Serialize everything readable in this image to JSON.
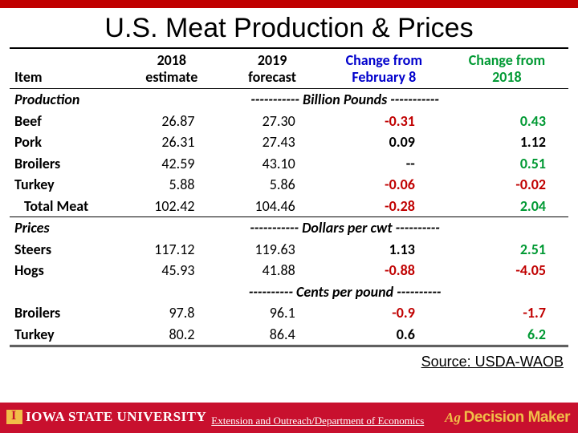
{
  "title": "U.S. Meat Production & Prices",
  "headers": {
    "item": "Item",
    "c1a": "2018",
    "c1b": "estimate",
    "c2a": "2019",
    "c2b": "forecast",
    "c3a": "Change from",
    "c3b": "February 8",
    "c4a": "Change from",
    "c4b": "2018"
  },
  "sections": {
    "production": {
      "label": "Production",
      "unit": "----------- Billion Pounds -----------"
    },
    "prices": {
      "label": "Prices",
      "unit": "----------- Dollars per cwt ----------"
    },
    "cents": {
      "unit": "---------- Cents per pound ----------"
    }
  },
  "rows": {
    "beef": {
      "label": "Beef",
      "v1": "26.87",
      "v2": "27.30",
      "v3": "-0.31",
      "v3_color": "red",
      "v4": "0.43",
      "v4_color": "green"
    },
    "pork": {
      "label": "Pork",
      "v1": "26.31",
      "v2": "27.43",
      "v3": "0.09",
      "v3_color": "black",
      "v4": "1.12",
      "v4_color": "black"
    },
    "broilers": {
      "label": "Broilers",
      "v1": "42.59",
      "v2": "43.10",
      "v3": "--",
      "v3_color": "black",
      "v4": "0.51",
      "v4_color": "green"
    },
    "turkey": {
      "label": "Turkey",
      "v1": "5.88",
      "v2": "5.86",
      "v3": "-0.06",
      "v3_color": "red",
      "v4": "-0.02",
      "v4_color": "red"
    },
    "total": {
      "label": "Total Meat",
      "v1": "102.42",
      "v2": "104.46",
      "v3": "-0.28",
      "v3_color": "red",
      "v4": "2.04",
      "v4_color": "green"
    },
    "steers": {
      "label": "Steers",
      "v1": "117.12",
      "v2": "119.63",
      "v3": "1.13",
      "v3_color": "black",
      "v4": "2.51",
      "v4_color": "green"
    },
    "hogs": {
      "label": "Hogs",
      "v1": "45.93",
      "v2": "41.88",
      "v3": "-0.88",
      "v3_color": "red",
      "v4": "-4.05",
      "v4_color": "red"
    },
    "broilers2": {
      "label": "Broilers",
      "v1": "97.8",
      "v2": "96.1",
      "v3": "-0.9",
      "v3_color": "red",
      "v4": "-1.7",
      "v4_color": "red"
    },
    "turkey2": {
      "label": "Turkey",
      "v1": "80.2",
      "v2": "86.4",
      "v3": "0.6",
      "v3_color": "black",
      "v4": "6.2",
      "v4_color": "green"
    }
  },
  "source": "Source: USDA-WAOB",
  "footer": {
    "university": "IOWA STATE UNIVERSITY",
    "ext": "Extension and Outreach/Department of Economics",
    "brand1": "Ag",
    "brand2": "Decision Maker"
  },
  "colors": {
    "red": "#c00000",
    "green": "#009933",
    "blue": "#0000cc",
    "gold": "#f1be48",
    "isu_red": "#c8102e"
  }
}
